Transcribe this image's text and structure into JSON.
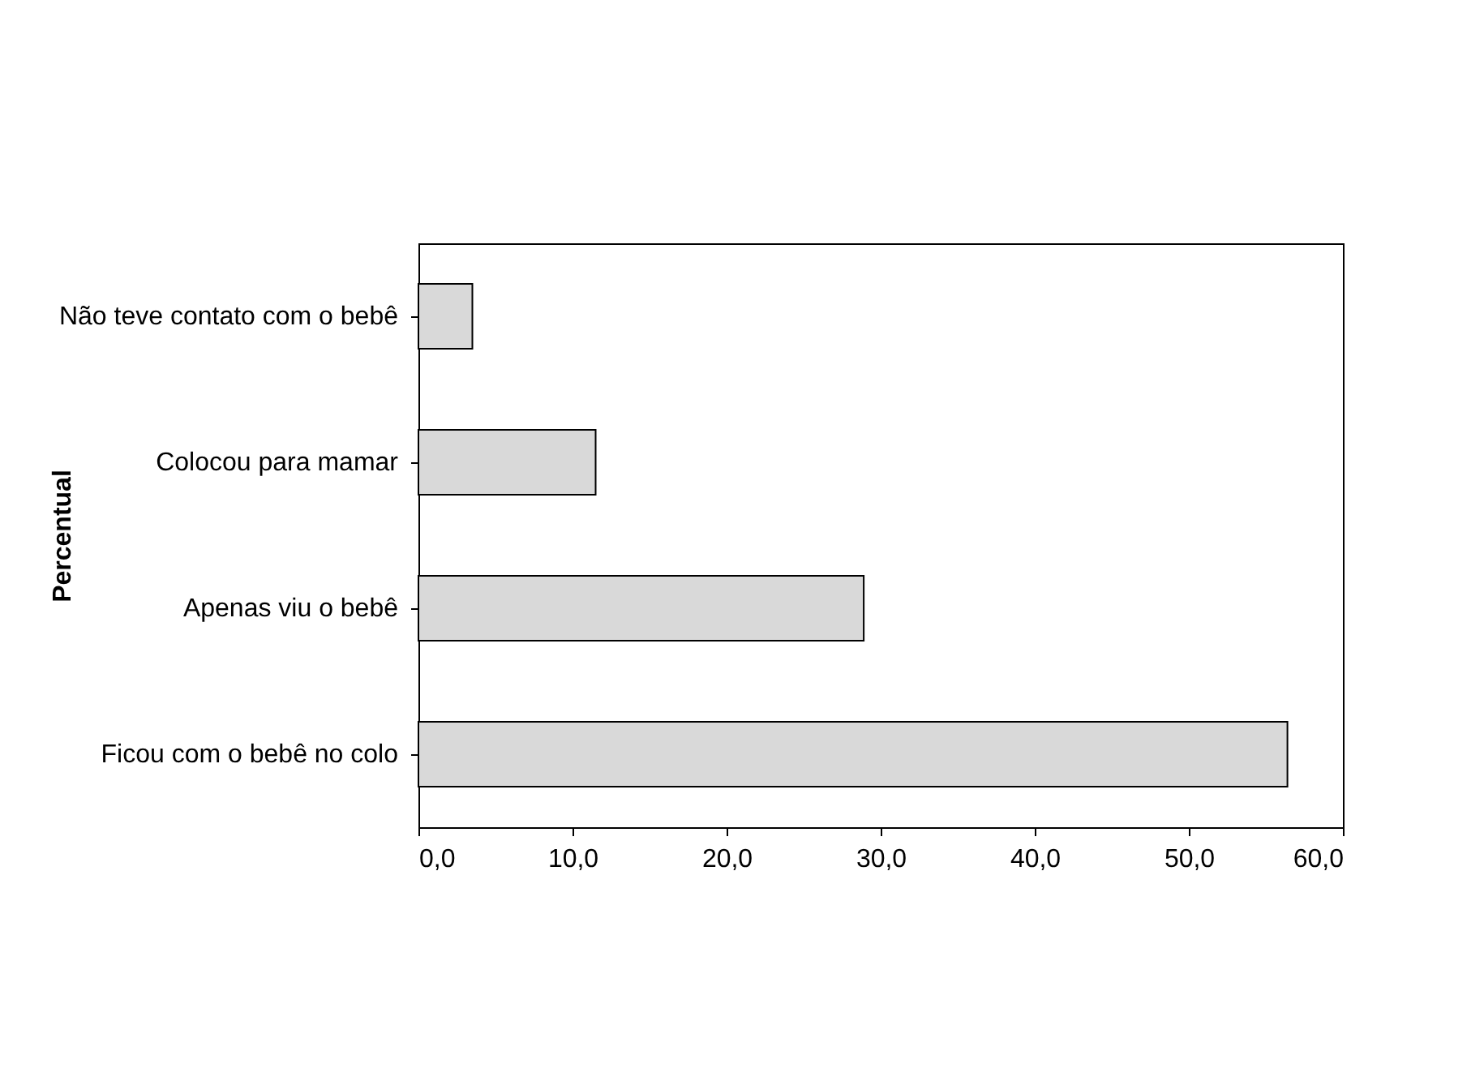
{
  "chart_data": {
    "type": "bar",
    "orientation": "horizontal",
    "ylabel": "Percentual",
    "categories": [
      "Não teve contato com o bebê",
      "Colocou para mamar",
      "Apenas viu o bebê",
      "Ficou com o bebê no colo"
    ],
    "values": [
      3.5,
      11.5,
      28.9,
      56.4
    ],
    "color": "#d9d9d9",
    "xlim": [
      0,
      60
    ],
    "xticks": [
      {
        "value": 0,
        "label": "0,0"
      },
      {
        "value": 10,
        "label": "10,0"
      },
      {
        "value": 20,
        "label": "20,0"
      },
      {
        "value": 30,
        "label": "30,0"
      },
      {
        "value": 40,
        "label": "40,0"
      },
      {
        "value": 50,
        "label": "50,0"
      },
      {
        "value": 60,
        "label": "60,0"
      }
    ],
    "grid": false
  }
}
